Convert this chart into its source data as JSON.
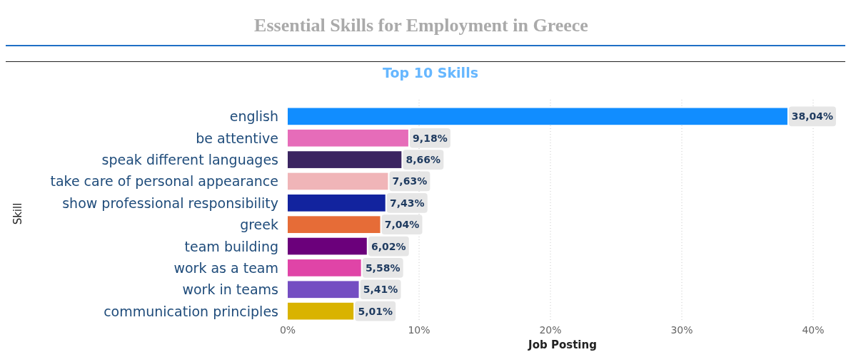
{
  "chart_data": {
    "type": "bar",
    "orientation": "horizontal",
    "title": "Essential Skills for Employment in Greece",
    "subtitle": "Top 10 Skills",
    "xlabel": "Job Posting",
    "ylabel": "Skill",
    "categories": [
      "english",
      "be attentive",
      "speak different languages",
      "take care of personal appearance",
      "show professional responsibility",
      "greek",
      "team building",
      "work as a team",
      "work in teams",
      "communication principles"
    ],
    "values": [
      38.04,
      9.18,
      8.66,
      7.63,
      7.43,
      7.04,
      6.02,
      5.58,
      5.41,
      5.01
    ],
    "colors": [
      "#118dff",
      "#e66cb9",
      "#3b2561",
      "#f0b5b8",
      "#12239e",
      "#e66c37",
      "#6b007b",
      "#e044a7",
      "#744ec2",
      "#d9b300"
    ],
    "value_labels": [
      "38,04%",
      "9,18%",
      "8,66%",
      "7,63%",
      "7,43%",
      "7,04%",
      "6,02%",
      "5,58%",
      "5,41%",
      "5,01%"
    ],
    "xlim": [
      0,
      40
    ],
    "xticks": [
      {
        "value": 0,
        "label": "0%"
      },
      {
        "value": 10,
        "label": "10%"
      },
      {
        "value": 20,
        "label": "20%"
      },
      {
        "value": 30,
        "label": "30%"
      },
      {
        "value": 40,
        "label": "40%"
      }
    ],
    "grid": "x"
  }
}
